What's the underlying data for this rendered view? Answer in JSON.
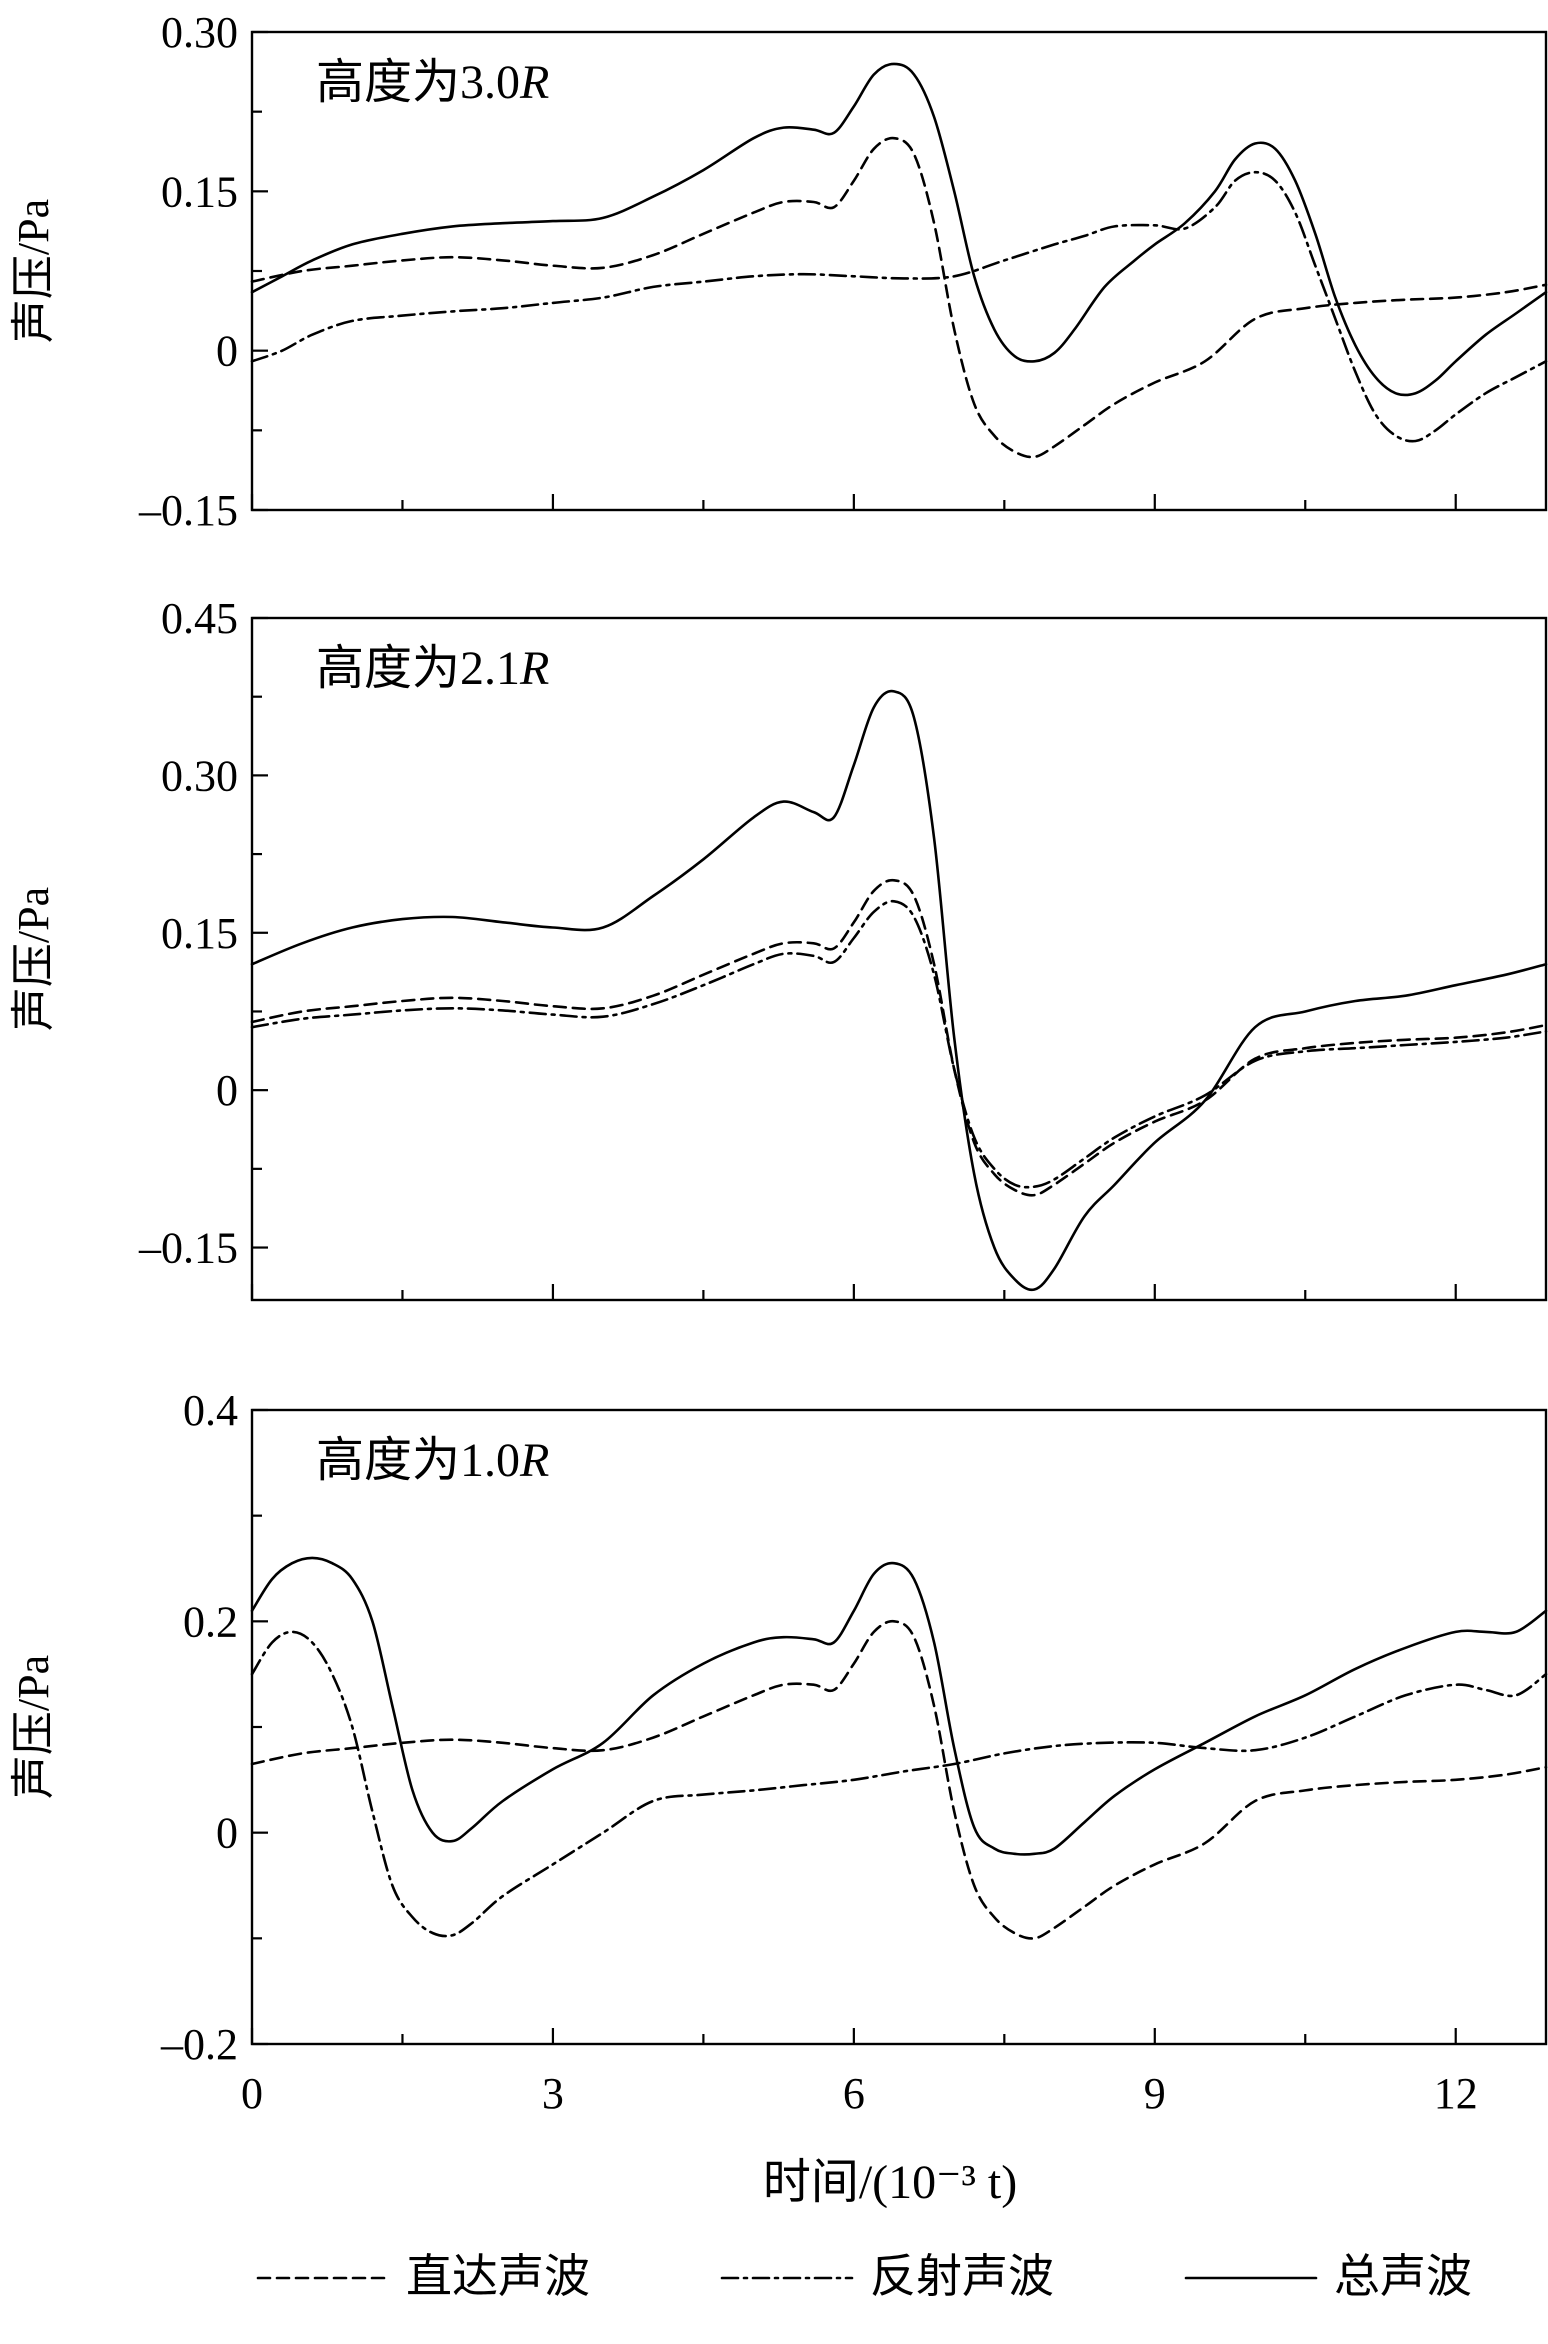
{
  "chart_data": {
    "type": "line",
    "xlabel": "时间/(10⁻³ t)",
    "xlim": [
      0,
      12.9
    ],
    "xticks": [
      0,
      3,
      6,
      9,
      12
    ],
    "legend": {
      "placement": "bottom",
      "entries": [
        {
          "label": "直达声波",
          "style": "dashed"
        },
        {
          "label": "反射声波",
          "style": "dashdot"
        },
        {
          "label": "总声波",
          "style": "solid"
        }
      ]
    },
    "panels": [
      {
        "title": "高度为3.0",
        "title_italic": "R",
        "ylabel": "声压/Pa",
        "ylim": [
          -0.15,
          0.3
        ],
        "yticks": [
          -0.15,
          0,
          0.15,
          0.3
        ],
        "ytick_labels": [
          "–0.15",
          "0",
          "0.15",
          "0.30"
        ],
        "series": [
          {
            "name": "直达声波",
            "style": "dashed",
            "x": [
              0,
              0.5,
              1,
              1.5,
              2,
              2.5,
              3,
              3.5,
              4,
              4.5,
              5,
              5.3,
              5.6,
              5.8,
              6,
              6.2,
              6.4,
              6.6,
              6.8,
              7,
              7.2,
              7.4,
              7.6,
              7.8,
              8,
              8.3,
              8.6,
              9,
              9.5,
              10,
              10.5,
              11,
              11.5,
              12,
              12.5,
              12.9
            ],
            "y": [
              0.065,
              0.075,
              0.08,
              0.085,
              0.088,
              0.085,
              0.08,
              0.078,
              0.09,
              0.11,
              0.13,
              0.14,
              0.14,
              0.135,
              0.16,
              0.19,
              0.2,
              0.185,
              0.12,
              0.02,
              -0.05,
              -0.08,
              -0.095,
              -0.1,
              -0.09,
              -0.07,
              -0.05,
              -0.03,
              -0.01,
              0.03,
              0.04,
              0.045,
              0.048,
              0.05,
              0.055,
              0.062
            ]
          },
          {
            "name": "反射声波",
            "style": "dashdot",
            "x": [
              0,
              0.3,
              0.6,
              1,
              1.5,
              2,
              2.5,
              3,
              3.5,
              4,
              4.5,
              5,
              5.5,
              6,
              6.5,
              7,
              7.5,
              8,
              8.3,
              8.6,
              9,
              9.3,
              9.6,
              9.8,
              10,
              10.2,
              10.4,
              10.6,
              10.8,
              11,
              11.2,
              11.4,
              11.6,
              11.8,
              12,
              12.3,
              12.6,
              12.9
            ],
            "y": [
              -0.01,
              0,
              0.015,
              0.028,
              0.033,
              0.037,
              0.04,
              0.045,
              0.05,
              0.06,
              0.065,
              0.07,
              0.072,
              0.07,
              0.068,
              0.07,
              0.085,
              0.1,
              0.108,
              0.117,
              0.118,
              0.115,
              0.135,
              0.16,
              0.168,
              0.16,
              0.13,
              0.08,
              0.03,
              -0.02,
              -0.06,
              -0.08,
              -0.085,
              -0.075,
              -0.06,
              -0.04,
              -0.025,
              -0.01
            ]
          },
          {
            "name": "总声波",
            "style": "solid",
            "x": [
              0,
              0.3,
              0.6,
              1,
              1.5,
              2,
              2.5,
              3,
              3.5,
              4,
              4.5,
              5,
              5.3,
              5.6,
              5.8,
              6,
              6.2,
              6.4,
              6.6,
              6.8,
              7,
              7.2,
              7.4,
              7.6,
              7.8,
              8,
              8.2,
              8.5,
              8.8,
              9,
              9.3,
              9.6,
              9.8,
              10,
              10.2,
              10.4,
              10.6,
              10.8,
              11,
              11.2,
              11.4,
              11.6,
              11.8,
              12,
              12.3,
              12.6,
              12.9
            ],
            "y": [
              0.055,
              0.07,
              0.085,
              0.1,
              0.11,
              0.117,
              0.12,
              0.122,
              0.125,
              0.145,
              0.17,
              0.2,
              0.21,
              0.208,
              0.205,
              0.23,
              0.26,
              0.27,
              0.26,
              0.22,
              0.15,
              0.07,
              0.02,
              -0.005,
              -0.01,
              -0.002,
              0.02,
              0.06,
              0.085,
              0.1,
              0.12,
              0.15,
              0.18,
              0.195,
              0.19,
              0.16,
              0.11,
              0.05,
              0.005,
              -0.025,
              -0.04,
              -0.04,
              -0.028,
              -0.01,
              0.015,
              0.035,
              0.055
            ]
          }
        ]
      },
      {
        "title": "高度为2.1",
        "title_italic": "R",
        "ylabel": "声压/Pa",
        "ylim": [
          -0.2,
          0.45
        ],
        "yticks": [
          -0.15,
          0,
          0.15,
          0.3,
          0.45
        ],
        "ytick_labels": [
          "–0.15",
          "0",
          "0.15",
          "0.30",
          "0.45"
        ],
        "series": [
          {
            "name": "直达声波",
            "style": "dashed",
            "x": [
              0,
              0.5,
              1,
              1.5,
              2,
              2.5,
              3,
              3.5,
              4,
              4.5,
              5,
              5.3,
              5.6,
              5.8,
              6,
              6.2,
              6.4,
              6.6,
              6.8,
              7,
              7.2,
              7.4,
              7.6,
              7.8,
              8,
              8.3,
              8.6,
              9,
              9.5,
              10,
              10.5,
              11,
              11.5,
              12,
              12.5,
              12.9
            ],
            "y": [
              0.065,
              0.075,
              0.08,
              0.085,
              0.088,
              0.085,
              0.08,
              0.078,
              0.09,
              0.11,
              0.13,
              0.14,
              0.14,
              0.135,
              0.16,
              0.19,
              0.2,
              0.185,
              0.12,
              0.02,
              -0.05,
              -0.08,
              -0.095,
              -0.1,
              -0.09,
              -0.07,
              -0.05,
              -0.03,
              -0.01,
              0.03,
              0.04,
              0.045,
              0.048,
              0.05,
              0.055,
              0.062
            ]
          },
          {
            "name": "反射声波",
            "style": "dashdot",
            "x": [
              0,
              0.5,
              1,
              1.5,
              2,
              2.5,
              3,
              3.5,
              4,
              4.5,
              5,
              5.3,
              5.6,
              5.8,
              6,
              6.2,
              6.4,
              6.6,
              6.8,
              7,
              7.2,
              7.4,
              7.6,
              7.8,
              8,
              8.3,
              8.6,
              9,
              9.5,
              10,
              10.5,
              11,
              11.5,
              12,
              12.5,
              12.9
            ],
            "y": [
              0.06,
              0.068,
              0.072,
              0.076,
              0.078,
              0.076,
              0.072,
              0.07,
              0.082,
              0.1,
              0.12,
              0.13,
              0.128,
              0.122,
              0.145,
              0.17,
              0.18,
              0.165,
              0.11,
              0.02,
              -0.045,
              -0.075,
              -0.09,
              -0.092,
              -0.085,
              -0.065,
              -0.045,
              -0.025,
              -0.005,
              0.028,
              0.037,
              0.04,
              0.043,
              0.046,
              0.05,
              0.056
            ]
          },
          {
            "name": "总声波",
            "style": "solid",
            "x": [
              0,
              0.5,
              1,
              1.5,
              2,
              2.5,
              3,
              3.5,
              4,
              4.5,
              5,
              5.3,
              5.6,
              5.8,
              6,
              6.2,
              6.4,
              6.6,
              6.8,
              7,
              7.2,
              7.4,
              7.6,
              7.8,
              8,
              8.3,
              8.6,
              9,
              9.5,
              10,
              10.5,
              11,
              11.5,
              12,
              12.5,
              12.9
            ],
            "y": [
              0.12,
              0.14,
              0.155,
              0.163,
              0.165,
              0.16,
              0.155,
              0.155,
              0.185,
              0.22,
              0.26,
              0.275,
              0.265,
              0.26,
              0.31,
              0.365,
              0.38,
              0.355,
              0.24,
              0.05,
              -0.08,
              -0.15,
              -0.18,
              -0.19,
              -0.17,
              -0.12,
              -0.09,
              -0.05,
              -0.01,
              0.06,
              0.075,
              0.085,
              0.09,
              0.1,
              0.11,
              0.12
            ]
          }
        ]
      },
      {
        "title": "高度为1.0",
        "title_italic": "R",
        "ylabel": "声压/Pa",
        "ylim": [
          -0.2,
          0.4
        ],
        "yticks": [
          -0.2,
          0,
          0.2,
          0.4
        ],
        "ytick_labels": [
          "–0.2",
          "0",
          "0.2",
          "0.4"
        ],
        "series": [
          {
            "name": "直达声波",
            "style": "dashed",
            "x": [
              0,
              0.5,
              1,
              1.5,
              2,
              2.5,
              3,
              3.5,
              4,
              4.5,
              5,
              5.3,
              5.6,
              5.8,
              6,
              6.2,
              6.4,
              6.6,
              6.8,
              7,
              7.2,
              7.4,
              7.6,
              7.8,
              8,
              8.3,
              8.6,
              9,
              9.5,
              10,
              10.5,
              11,
              11.5,
              12,
              12.5,
              12.9
            ],
            "y": [
              0.065,
              0.075,
              0.08,
              0.085,
              0.088,
              0.085,
              0.08,
              0.078,
              0.09,
              0.11,
              0.13,
              0.14,
              0.14,
              0.135,
              0.16,
              0.19,
              0.2,
              0.185,
              0.12,
              0.02,
              -0.05,
              -0.08,
              -0.095,
              -0.1,
              -0.09,
              -0.07,
              -0.05,
              -0.03,
              -0.01,
              0.03,
              0.04,
              0.045,
              0.048,
              0.05,
              0.055,
              0.062
            ]
          },
          {
            "name": "反射声波",
            "style": "dashdot",
            "x": [
              0,
              0.2,
              0.4,
              0.6,
              0.8,
              1,
              1.2,
              1.4,
              1.6,
              1.8,
              2,
              2.2,
              2.5,
              3,
              3.5,
              4,
              4.5,
              5,
              5.5,
              6,
              6.5,
              7,
              7.5,
              8,
              8.5,
              9,
              9.5,
              10,
              10.5,
              11,
              11.5,
              12,
              12.3,
              12.6,
              12.9
            ],
            "y": [
              0.15,
              0.18,
              0.19,
              0.18,
              0.15,
              0.1,
              0.02,
              -0.05,
              -0.08,
              -0.095,
              -0.097,
              -0.085,
              -0.06,
              -0.03,
              0,
              0.03,
              0.036,
              0.04,
              0.045,
              0.05,
              0.058,
              0.065,
              0.075,
              0.082,
              0.085,
              0.085,
              0.08,
              0.078,
              0.09,
              0.11,
              0.13,
              0.14,
              0.135,
              0.13,
              0.15
            ]
          },
          {
            "name": "总声波",
            "style": "solid",
            "x": [
              0,
              0.2,
              0.4,
              0.6,
              0.8,
              1,
              1.2,
              1.4,
              1.6,
              1.8,
              2,
              2.2,
              2.5,
              3,
              3.5,
              4,
              4.5,
              5,
              5.3,
              5.6,
              5.8,
              6,
              6.2,
              6.4,
              6.6,
              6.8,
              7,
              7.2,
              7.4,
              7.6,
              7.8,
              8,
              8.3,
              8.6,
              9,
              9.5,
              10,
              10.5,
              11,
              11.5,
              12,
              12.3,
              12.6,
              12.9
            ],
            "y": [
              0.21,
              0.24,
              0.255,
              0.26,
              0.255,
              0.24,
              0.2,
              0.12,
              0.04,
              0,
              -0.008,
              0.005,
              0.03,
              0.06,
              0.085,
              0.13,
              0.16,
              0.18,
              0.185,
              0.183,
              0.18,
              0.21,
              0.245,
              0.255,
              0.24,
              0.18,
              0.08,
              0.005,
              -0.015,
              -0.02,
              -0.02,
              -0.015,
              0.01,
              0.035,
              0.06,
              0.085,
              0.11,
              0.13,
              0.155,
              0.175,
              0.19,
              0.19,
              0.19,
              0.21
            ]
          }
        ]
      }
    ]
  }
}
